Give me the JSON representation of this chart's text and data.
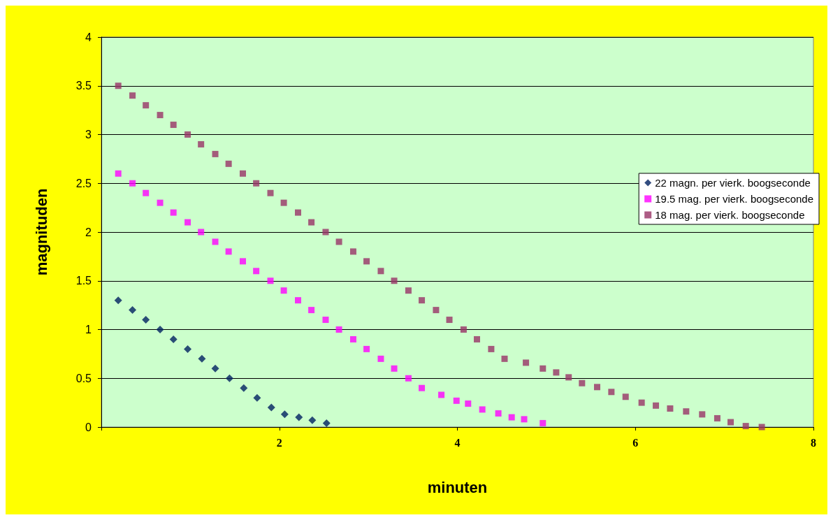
{
  "chart_data": {
    "type": "scatter",
    "xlabel": "minuten",
    "ylabel": "magnituden",
    "xlim": [
      0,
      8
    ],
    "xticks": [
      {
        "value": 0,
        "label": null
      },
      2,
      4,
      6,
      8
    ],
    "ylim": [
      0,
      4
    ],
    "yticks": [
      0,
      0.5,
      1,
      1.5,
      2,
      2.5,
      3,
      3.5,
      4
    ],
    "grid": "y",
    "legend": "right",
    "marker": "square",
    "series": [
      {
        "name": "22 magn. per vierk. boogseconde",
        "color": "#002060",
        "marker": "diamond",
        "x": [
          0.19,
          0.35,
          0.5,
          0.66,
          0.81,
          0.97,
          1.13,
          1.28,
          1.44,
          1.6,
          1.75,
          1.91,
          2.06,
          2.22,
          2.37,
          2.53
        ],
        "values": [
          1.3,
          1.2,
          1.1,
          1.0,
          0.9,
          0.8,
          0.7,
          0.6,
          0.5,
          0.4,
          0.3,
          0.2,
          0.13,
          0.1,
          0.07,
          0.04
        ]
      },
      {
        "name": "19.5 mag. per vierk. boogseconde",
        "color": "#ff00ff",
        "x": [
          0.19,
          0.35,
          0.5,
          0.66,
          0.81,
          0.97,
          1.12,
          1.28,
          1.43,
          1.59,
          1.74,
          1.9,
          2.05,
          2.21,
          2.36,
          2.52,
          2.67,
          2.83,
          2.98,
          3.14,
          3.29,
          3.45,
          3.6,
          3.82,
          3.99,
          4.12,
          4.28,
          4.46,
          4.61,
          4.75,
          4.96
        ],
        "values": [
          2.6,
          2.5,
          2.4,
          2.3,
          2.2,
          2.1,
          2.0,
          1.9,
          1.8,
          1.7,
          1.6,
          1.5,
          1.4,
          1.3,
          1.2,
          1.1,
          1.0,
          0.9,
          0.8,
          0.7,
          0.6,
          0.5,
          0.4,
          0.33,
          0.27,
          0.24,
          0.18,
          0.14,
          0.1,
          0.08,
          0.04
        ]
      },
      {
        "name": "18 mag. per vierk. boogseconde",
        "color": "#993366",
        "x": [
          0.19,
          0.35,
          0.5,
          0.66,
          0.81,
          0.97,
          1.12,
          1.28,
          1.43,
          1.59,
          1.74,
          1.9,
          2.05,
          2.21,
          2.36,
          2.52,
          2.67,
          2.83,
          2.98,
          3.14,
          3.29,
          3.45,
          3.6,
          3.76,
          3.91,
          4.07,
          4.22,
          4.38,
          4.53,
          4.77,
          4.96,
          5.11,
          5.25,
          5.4,
          5.57,
          5.73,
          5.89,
          6.07,
          6.23,
          6.39,
          6.57,
          6.75,
          6.92,
          7.07,
          7.24,
          7.42
        ],
        "values": [
          3.5,
          3.4,
          3.3,
          3.2,
          3.1,
          3.0,
          2.9,
          2.8,
          2.7,
          2.6,
          2.5,
          2.4,
          2.3,
          2.2,
          2.1,
          2.0,
          1.9,
          1.8,
          1.7,
          1.6,
          1.5,
          1.4,
          1.3,
          1.2,
          1.1,
          1.0,
          0.9,
          0.8,
          0.7,
          0.66,
          0.6,
          0.56,
          0.51,
          0.45,
          0.41,
          0.36,
          0.31,
          0.25,
          0.22,
          0.19,
          0.16,
          0.13,
          0.09,
          0.05,
          0.01,
          0
        ]
      }
    ]
  }
}
